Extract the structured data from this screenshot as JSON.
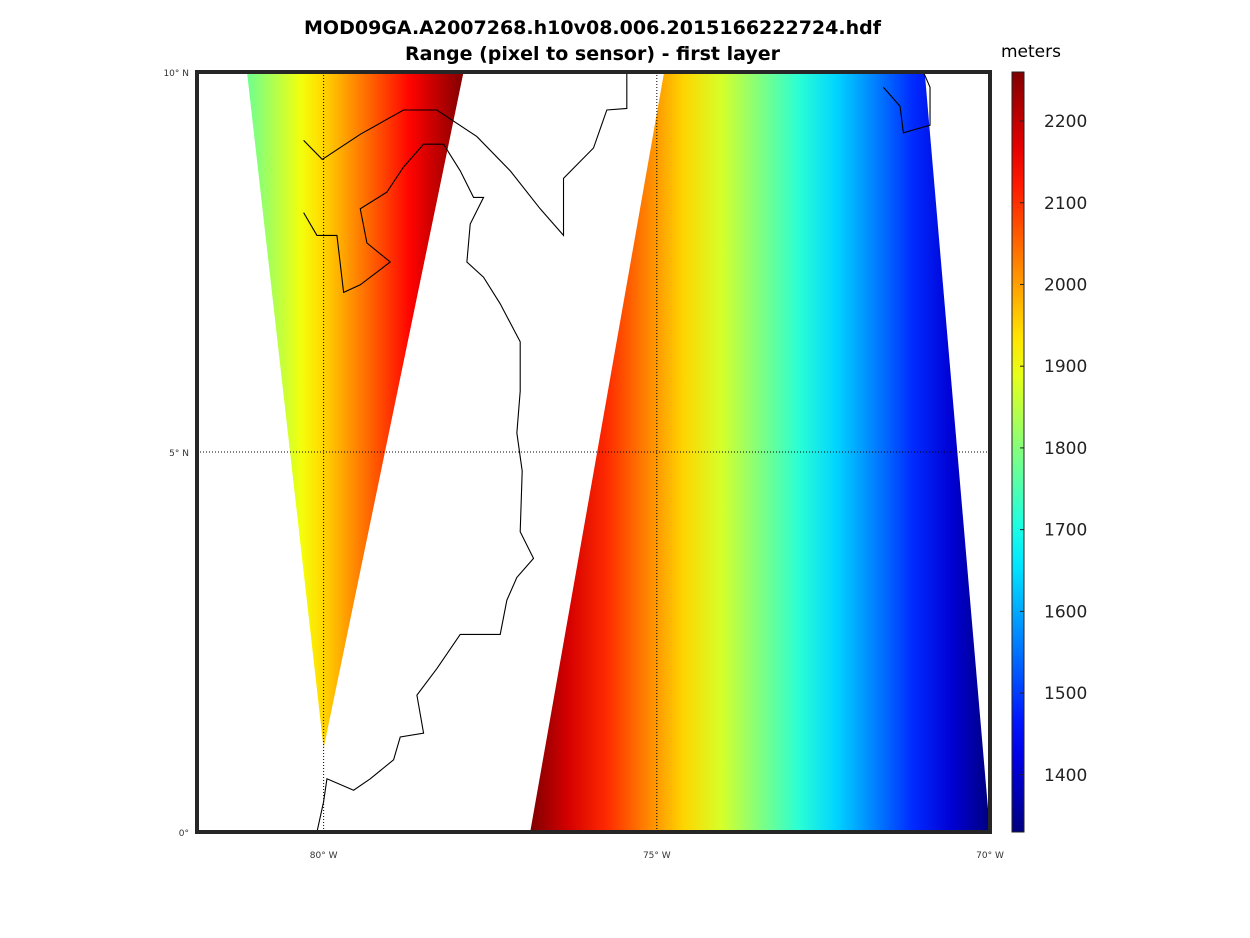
{
  "chart_data": {
    "type": "heatmap",
    "title": "MOD09GA.A2007268.h10v08.006.2015166222724.hdf",
    "subtitle": "Range (pixel to sensor) - first layer",
    "colorbar": {
      "label": "meters",
      "range": [
        1330,
        2260
      ],
      "ticks": [
        {
          "value": 1400,
          "label": "1400"
        },
        {
          "value": 1500,
          "label": "1500"
        },
        {
          "value": 1600,
          "label": "1600"
        },
        {
          "value": 1700,
          "label": "1700"
        },
        {
          "value": 1800,
          "label": "1800"
        },
        {
          "value": 1900,
          "label": "1900"
        },
        {
          "value": 2000,
          "label": "2000"
        },
        {
          "value": 2100,
          "label": "2100"
        },
        {
          "value": 2200,
          "label": "2200"
        }
      ],
      "colormap": "jet"
    },
    "map": {
      "lon_range": [
        -81.9,
        -70.0
      ],
      "lat_range": [
        0,
        10
      ],
      "lon_ticks": [
        {
          "value": -80,
          "label": "80° W"
        },
        {
          "value": -75,
          "label": "75° W"
        },
        {
          "value": -70,
          "label": "70° W"
        }
      ],
      "lat_ticks": [
        {
          "value": 0,
          "label": "0°"
        },
        {
          "value": 5,
          "label": "5° N"
        },
        {
          "value": 10,
          "label": "10° N"
        }
      ],
      "grid": "dotted"
    },
    "swaths": [
      {
        "name": "west-swath",
        "corners": [
          [
            -81.15,
            10
          ],
          [
            -77.9,
            10
          ],
          [
            -80.0,
            1.1
          ]
        ],
        "range_west": 1780,
        "range_east": 2260
      },
      {
        "name": "east-swath",
        "corners": [
          [
            -74.89,
            10
          ],
          [
            -70.98,
            10
          ],
          [
            -70.0,
            0
          ],
          [
            -76.9,
            0
          ]
        ],
        "range_west": 2260,
        "range_east": 1330
      }
    ],
    "coastlines": [
      [
        [
          -80.3,
          9.1
        ],
        [
          -80.02,
          8.85
        ],
        [
          -79.45,
          9.18
        ],
        [
          -78.8,
          9.5
        ],
        [
          -78.3,
          9.5
        ],
        [
          -77.7,
          9.15
        ],
        [
          -77.2,
          8.7
        ],
        [
          -76.75,
          8.2
        ],
        [
          -76.4,
          7.85
        ],
        [
          -76.4,
          8.6
        ],
        [
          -75.95,
          9.0
        ],
        [
          -75.75,
          9.5
        ],
        [
          -75.45,
          9.52
        ],
        [
          -75.45,
          10.0
        ]
      ],
      [
        [
          -71.6,
          9.8
        ],
        [
          -71.35,
          9.55
        ],
        [
          -71.3,
          9.2
        ],
        [
          -70.9,
          9.3
        ],
        [
          -70.9,
          9.8
        ],
        [
          -71.0,
          10.0
        ]
      ],
      [
        [
          -80.3,
          8.15
        ],
        [
          -80.1,
          7.85
        ],
        [
          -79.8,
          7.85
        ],
        [
          -79.7,
          7.1
        ],
        [
          -79.45,
          7.2
        ],
        [
          -79.0,
          7.5
        ],
        [
          -79.35,
          7.75
        ],
        [
          -79.45,
          8.2
        ],
        [
          -79.05,
          8.42
        ],
        [
          -78.8,
          8.75
        ],
        [
          -78.5,
          9.05
        ],
        [
          -78.2,
          9.05
        ],
        [
          -77.95,
          8.7
        ],
        [
          -77.75,
          8.35
        ],
        [
          -77.6,
          8.35
        ],
        [
          -77.8,
          8.0
        ],
        [
          -77.85,
          7.5
        ],
        [
          -77.6,
          7.3
        ],
        [
          -77.35,
          6.95
        ],
        [
          -77.05,
          6.45
        ],
        [
          -77.05,
          5.8
        ],
        [
          -77.1,
          5.25
        ],
        [
          -77.02,
          4.75
        ],
        [
          -77.05,
          3.95
        ],
        [
          -76.85,
          3.6
        ],
        [
          -77.1,
          3.35
        ],
        [
          -77.25,
          3.05
        ],
        [
          -77.35,
          2.6
        ],
        [
          -77.95,
          2.6
        ],
        [
          -78.3,
          2.15
        ],
        [
          -78.6,
          1.8
        ],
        [
          -78.5,
          1.3
        ],
        [
          -78.85,
          1.25
        ],
        [
          -78.95,
          0.95
        ],
        [
          -79.3,
          0.7
        ],
        [
          -79.55,
          0.55
        ],
        [
          -79.95,
          0.7
        ],
        [
          -80.0,
          0.4
        ],
        [
          -80.1,
          0.0
        ]
      ]
    ]
  }
}
